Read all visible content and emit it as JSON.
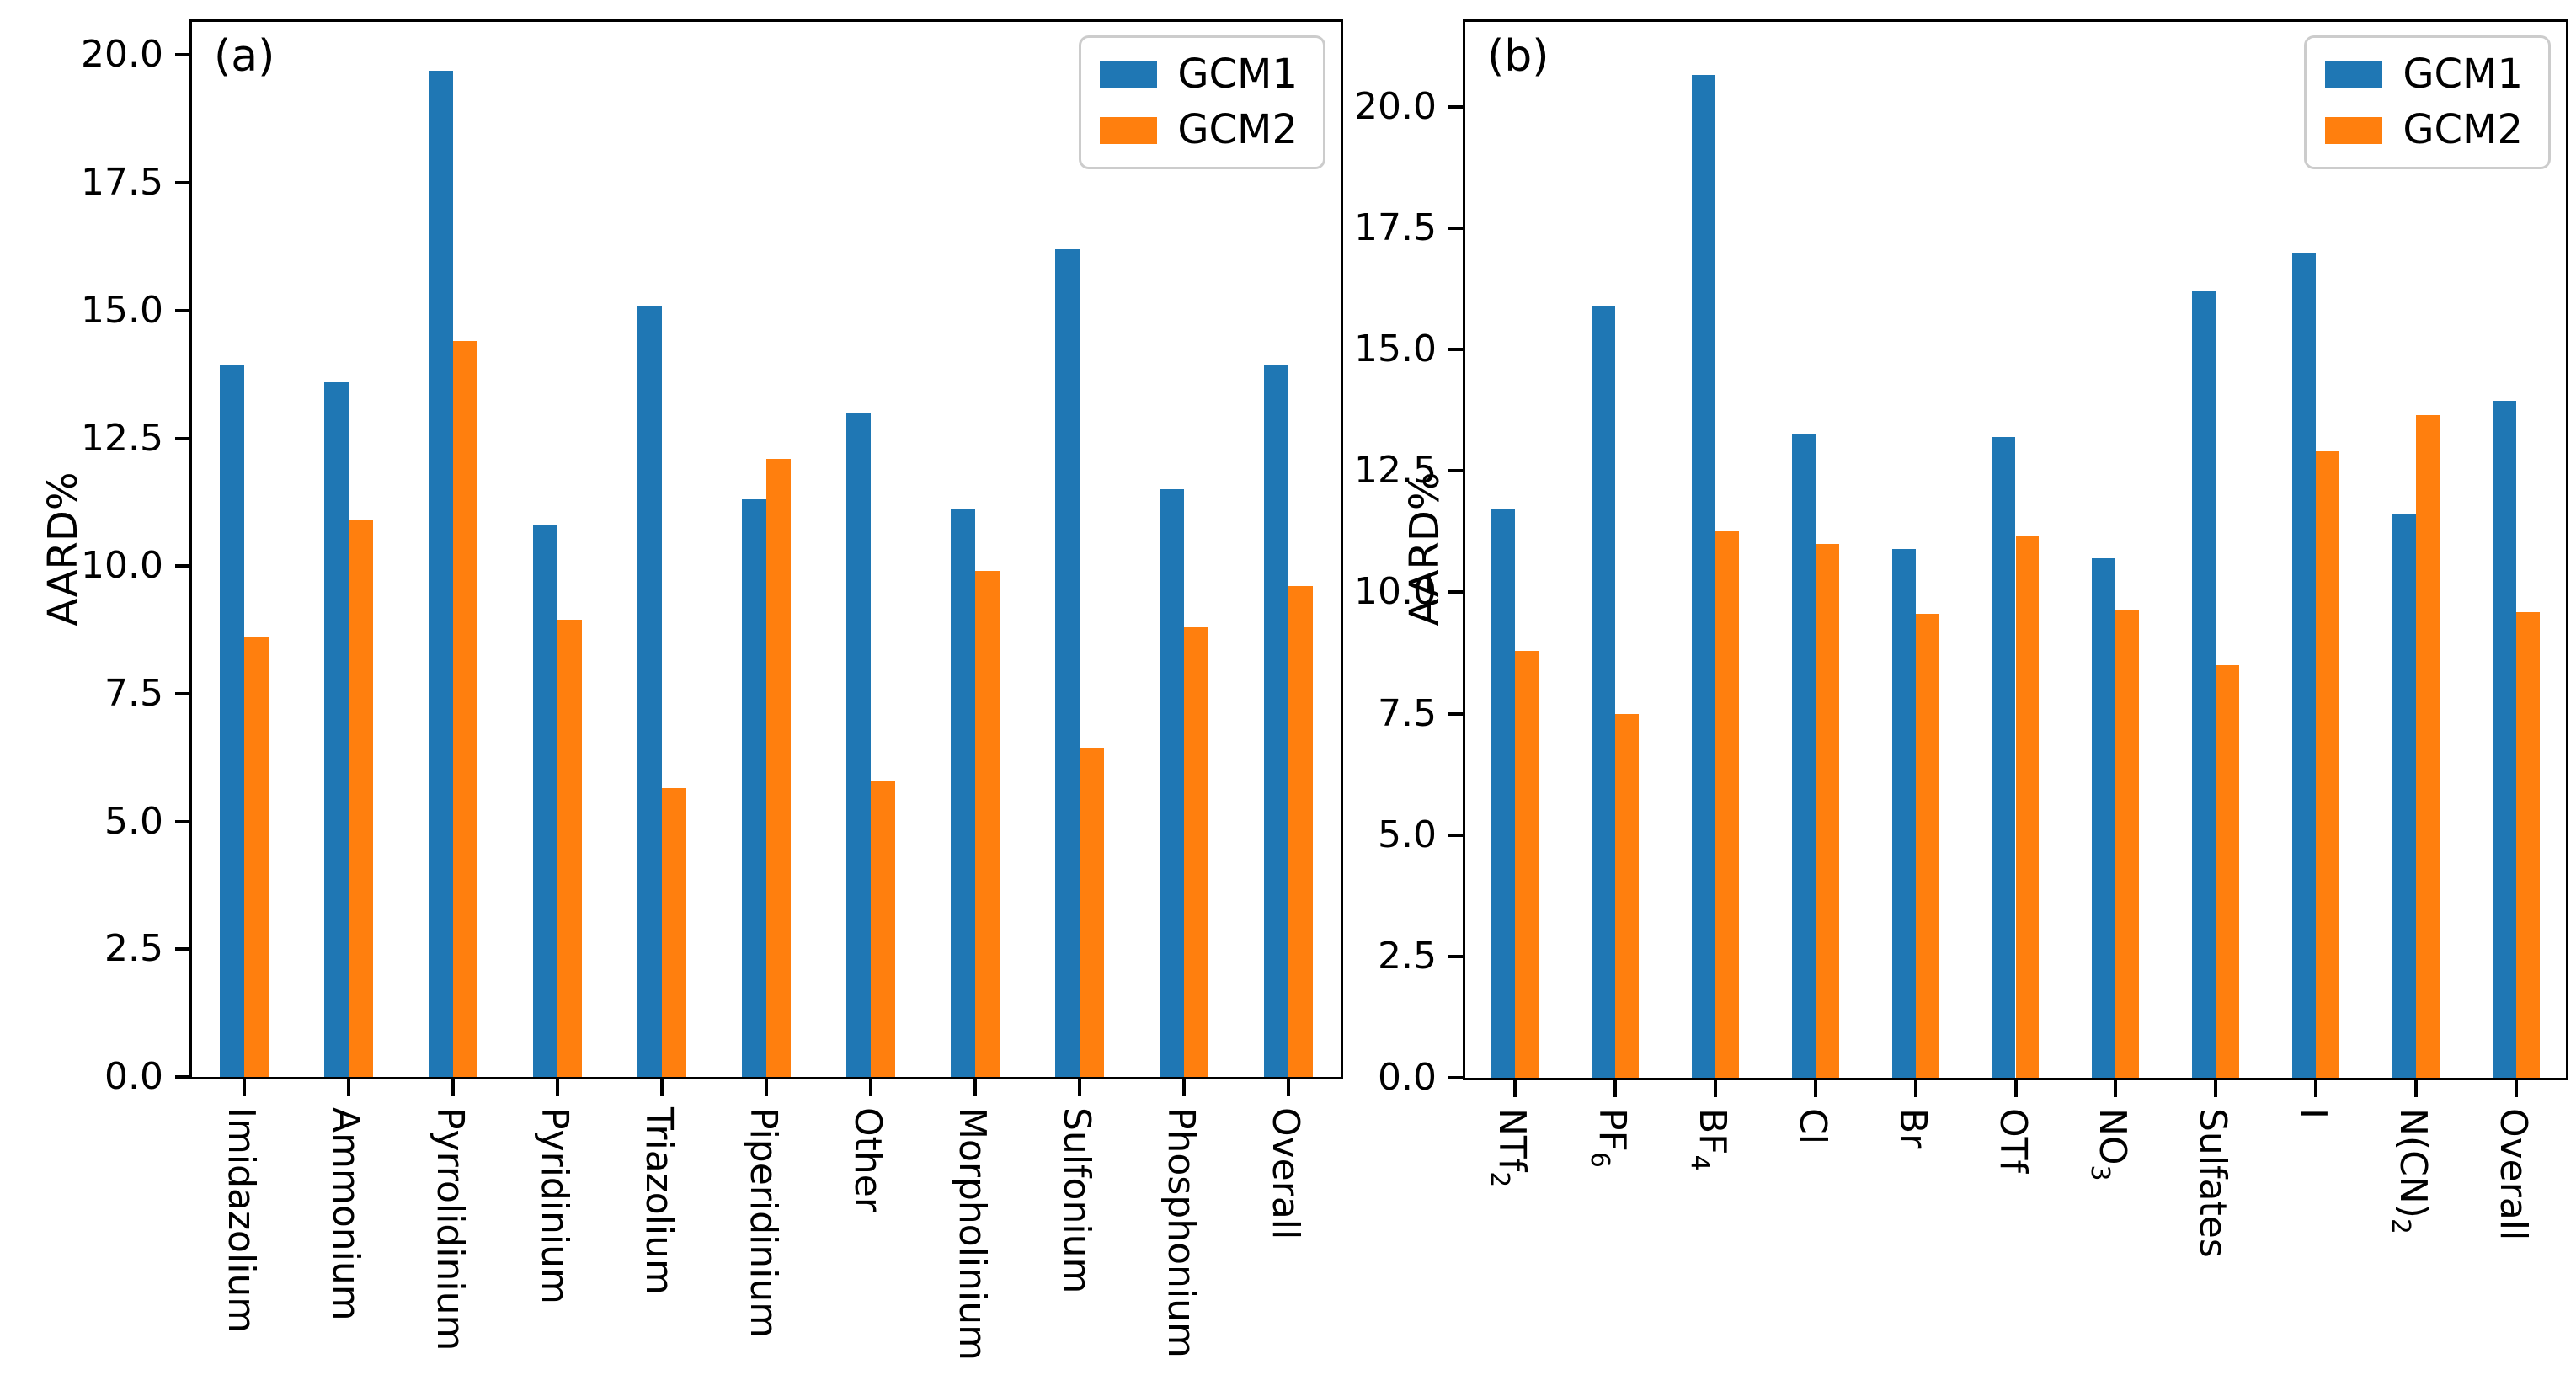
{
  "figure": {
    "background": "#ffffff",
    "accent_colors": {
      "gcm1_blue": "#1f77b4",
      "gcm2_orange": "#ff7f0e"
    }
  },
  "chart_data": [
    {
      "type": "bar",
      "panel_label": "(a)",
      "title": "",
      "xlabel": "",
      "ylabel": "AARD%",
      "ylim": [
        0,
        20.65
      ],
      "yticks": [
        0,
        2.5,
        5,
        7.5,
        10,
        12.5,
        15,
        17.5,
        20
      ],
      "grid": false,
      "legend_position": "upper right",
      "categories": [
        "Imidazolium",
        "Ammonium",
        "Pyrrolidinium",
        "Pyridinium",
        "Triazolium",
        "Piperidinium",
        "Other",
        "Morpholinium",
        "Sulfonium",
        "Phosphonium",
        "Overall"
      ],
      "series": [
        {
          "name": "GCM1",
          "color": "#1f77b4",
          "values": [
            13.95,
            13.6,
            19.7,
            10.8,
            15.1,
            11.3,
            13.0,
            11.1,
            16.2,
            11.5,
            13.95
          ]
        },
        {
          "name": "GCM2",
          "color": "#ff7f0e",
          "values": [
            8.6,
            10.9,
            14.4,
            8.95,
            5.65,
            12.1,
            5.8,
            9.9,
            6.45,
            8.8,
            9.6
          ]
        }
      ]
    },
    {
      "type": "bar",
      "panel_label": "(b)",
      "title": "",
      "xlabel": "",
      "ylabel": "AARD%",
      "ylim": [
        0,
        21.75
      ],
      "yticks": [
        0,
        2.5,
        5,
        7.5,
        10,
        12.5,
        15,
        17.5,
        20
      ],
      "grid": false,
      "legend_position": "upper right",
      "categories": [
        "NTf_2",
        "PF_6",
        "BF_4",
        "Cl",
        "Br",
        "OTf",
        "NO_3",
        "Sulfates",
        "I",
        "N(CN)_2",
        "Overall"
      ],
      "series": [
        {
          "name": "GCM1",
          "color": "#1f77b4",
          "values": [
            11.7,
            15.9,
            20.65,
            13.25,
            10.9,
            13.2,
            10.7,
            16.2,
            17.0,
            11.6,
            13.95
          ]
        },
        {
          "name": "GCM2",
          "color": "#ff7f0e",
          "values": [
            8.8,
            7.5,
            11.25,
            11.0,
            9.55,
            11.15,
            9.65,
            8.5,
            12.9,
            13.65,
            9.6
          ]
        }
      ]
    }
  ]
}
